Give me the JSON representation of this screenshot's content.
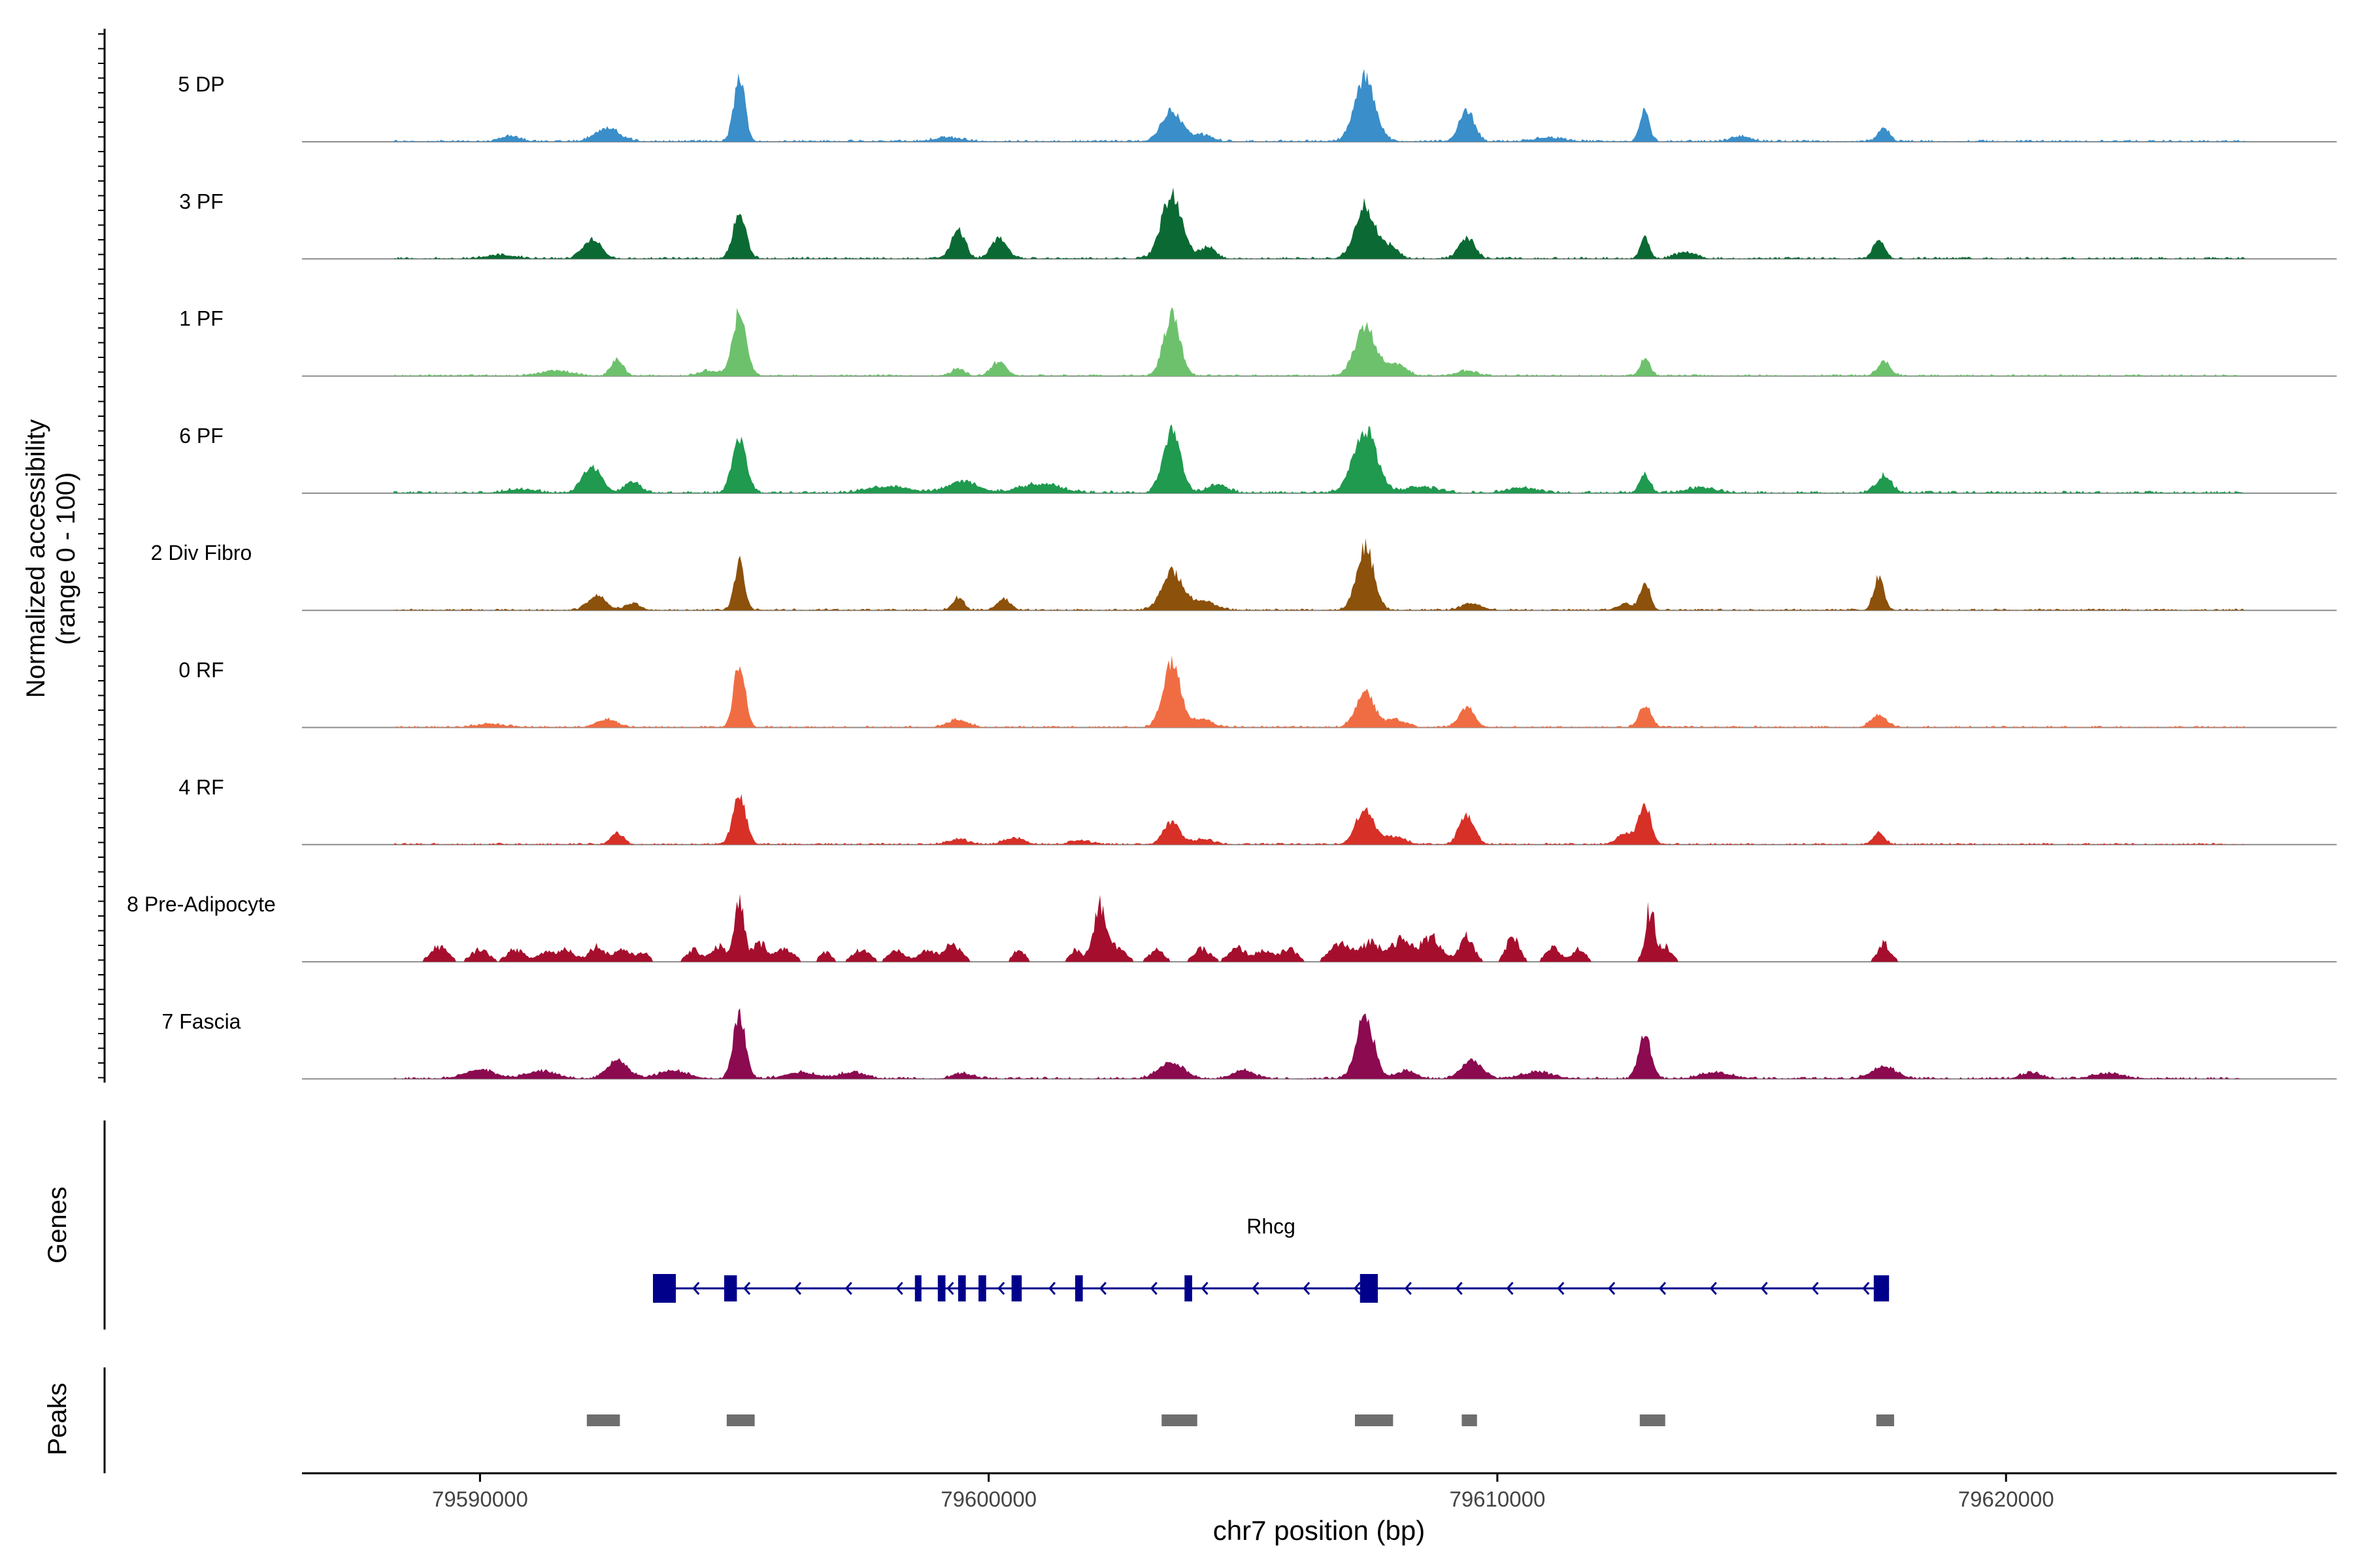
{
  "chart_data": {
    "type": "area",
    "title": "",
    "y_axis_label_line1": "Normalized accessibility",
    "y_axis_label_line2": "(range 0 - 100)",
    "genes_label": "Genes",
    "peaks_label": "Peaks",
    "xlabel": "chr7 position (bp)",
    "xlim": [
      79586500,
      79626500
    ],
    "x_ticks": [
      {
        "value": 79590000,
        "label": "79590000"
      },
      {
        "value": 79600000,
        "label": "79600000"
      },
      {
        "value": 79610000,
        "label": "79610000"
      },
      {
        "value": 79620000,
        "label": "79620000"
      }
    ],
    "ylim": [
      0,
      100
    ],
    "track_xrange": [
      79588300,
      79624700
    ],
    "series": [
      {
        "name": "5 DP",
        "color": "#3a8ec9",
        "sparse": false,
        "noise": 3,
        "peaks": [
          [
            79595100,
            100,
            110
          ],
          [
            79603600,
            48,
            200
          ],
          [
            79607400,
            100,
            200
          ],
          [
            79609400,
            48,
            150
          ],
          [
            79612900,
            48,
            90
          ],
          [
            79592500,
            20,
            250
          ],
          [
            79617600,
            22,
            110
          ],
          [
            79590600,
            8,
            200
          ],
          [
            79599200,
            6,
            300
          ],
          [
            79604200,
            10,
            200
          ],
          [
            79614800,
            8,
            200
          ],
          [
            79611000,
            6,
            300
          ]
        ]
      },
      {
        "name": "3 PF",
        "color": "#0b6a33",
        "sparse": false,
        "noise": 3,
        "peaks": [
          [
            79595100,
            70,
            130
          ],
          [
            79603600,
            100,
            200
          ],
          [
            79607400,
            82,
            200
          ],
          [
            79599400,
            48,
            130
          ],
          [
            79600200,
            33,
            150
          ],
          [
            79592200,
            30,
            180
          ],
          [
            79609400,
            33,
            150
          ],
          [
            79612900,
            33,
            90
          ],
          [
            79617500,
            33,
            110
          ],
          [
            79604300,
            18,
            150
          ],
          [
            79607900,
            18,
            150
          ],
          [
            79613700,
            10,
            200
          ],
          [
            79590400,
            6,
            300
          ]
        ]
      },
      {
        "name": "1 PF",
        "color": "#6dc16c",
        "sparse": false,
        "noise": 2.5,
        "peaks": [
          [
            79595100,
            100,
            130
          ],
          [
            79603600,
            95,
            160
          ],
          [
            79607400,
            78,
            200
          ],
          [
            79592700,
            25,
            120
          ],
          [
            79600200,
            22,
            150
          ],
          [
            79599400,
            12,
            120
          ],
          [
            79612900,
            26,
            100
          ],
          [
            79617600,
            22,
            130
          ],
          [
            79608000,
            18,
            200
          ],
          [
            79591500,
            8,
            300
          ],
          [
            79594500,
            8,
            200
          ],
          [
            79609400,
            8,
            200
          ]
        ]
      },
      {
        "name": "6 PF",
        "color": "#1f9a4f",
        "sparse": false,
        "noise": 3.5,
        "peaks": [
          [
            79595100,
            82,
            140
          ],
          [
            79603600,
            100,
            170
          ],
          [
            79607400,
            100,
            230
          ],
          [
            79592200,
            40,
            190
          ],
          [
            79599500,
            18,
            300
          ],
          [
            79601000,
            14,
            400
          ],
          [
            79604500,
            12,
            200
          ],
          [
            79612900,
            30,
            100
          ],
          [
            79617600,
            26,
            150
          ],
          [
            79593000,
            18,
            150
          ],
          [
            79608500,
            10,
            300
          ],
          [
            79610500,
            8,
            300
          ],
          [
            79614000,
            8,
            300
          ],
          [
            79597800,
            8,
            300
          ],
          [
            79590800,
            6,
            300
          ],
          [
            79598300,
            6,
            300
          ]
        ]
      },
      {
        "name": "2 Div Fibro",
        "color": "#8c510a",
        "sparse": false,
        "noise": 2.5,
        "peaks": [
          [
            79595100,
            75,
            100
          ],
          [
            79603600,
            60,
            200
          ],
          [
            79607400,
            100,
            170
          ],
          [
            79592300,
            22,
            180
          ],
          [
            79599400,
            20,
            110
          ],
          [
            79600300,
            18,
            130
          ],
          [
            79612900,
            45,
            100
          ],
          [
            79617500,
            52,
            100
          ],
          [
            79609500,
            10,
            200
          ],
          [
            79604200,
            14,
            250
          ],
          [
            79593000,
            10,
            150
          ],
          [
            79612500,
            10,
            150
          ]
        ]
      },
      {
        "name": "0 RF",
        "color": "#f06d43",
        "sparse": false,
        "noise": 2.5,
        "peaks": [
          [
            79595100,
            100,
            110
          ],
          [
            79603600,
            100,
            170
          ],
          [
            79607400,
            55,
            180
          ],
          [
            79609400,
            30,
            150
          ],
          [
            79612900,
            35,
            120
          ],
          [
            79617500,
            20,
            150
          ],
          [
            79592500,
            12,
            200
          ],
          [
            79599400,
            12,
            200
          ],
          [
            79604200,
            12,
            200
          ],
          [
            79608000,
            12,
            200
          ],
          [
            79590200,
            5,
            300
          ]
        ]
      },
      {
        "name": "4 RF",
        "color": "#d73027",
        "sparse": false,
        "noise": 2.5,
        "peaks": [
          [
            79595100,
            75,
            130
          ],
          [
            79603600,
            35,
            160
          ],
          [
            79607400,
            55,
            180
          ],
          [
            79609400,
            45,
            150
          ],
          [
            79612900,
            60,
            120
          ],
          [
            79617500,
            20,
            110
          ],
          [
            79592700,
            18,
            120
          ],
          [
            79600500,
            10,
            200
          ],
          [
            79599400,
            8,
            200
          ],
          [
            79601800,
            6,
            200
          ],
          [
            79608000,
            12,
            200
          ],
          [
            79612500,
            18,
            150
          ],
          [
            79604200,
            8,
            200
          ]
        ]
      },
      {
        "name": "8 Pre-Adipocyte",
        "color": "#a50f2d",
        "sparse": true,
        "noise": 0,
        "peaks": [
          [
            79589200,
            25,
            150
          ],
          [
            79590000,
            20,
            150
          ],
          [
            79590700,
            20,
            150
          ],
          [
            79591300,
            15,
            150
          ],
          [
            79591700,
            20,
            150
          ],
          [
            79592300,
            25,
            150
          ],
          [
            79592800,
            20,
            150
          ],
          [
            79593200,
            15,
            100
          ],
          [
            79594200,
            18,
            130
          ],
          [
            79594700,
            25,
            150
          ],
          [
            79595100,
            100,
            90
          ],
          [
            79595500,
            30,
            150
          ],
          [
            79596000,
            22,
            150
          ],
          [
            79596800,
            15,
            100
          ],
          [
            79597500,
            20,
            150
          ],
          [
            79598200,
            16,
            150
          ],
          [
            79598800,
            18,
            150
          ],
          [
            79599300,
            30,
            150
          ],
          [
            79600600,
            20,
            100
          ],
          [
            79601700,
            18,
            100
          ],
          [
            79602200,
            100,
            140
          ],
          [
            79602600,
            20,
            120
          ],
          [
            79603300,
            18,
            130
          ],
          [
            79604200,
            20,
            150
          ],
          [
            79604900,
            22,
            150
          ],
          [
            79605400,
            18,
            150
          ],
          [
            79605900,
            20,
            150
          ],
          [
            79606900,
            30,
            180
          ],
          [
            79607500,
            32,
            200
          ],
          [
            79608100,
            35,
            200
          ],
          [
            79608700,
            40,
            200
          ],
          [
            79609400,
            40,
            130
          ],
          [
            79610300,
            40,
            120
          ],
          [
            79611100,
            22,
            130
          ],
          [
            79611600,
            20,
            120
          ],
          [
            79613000,
            90,
            90
          ],
          [
            79613300,
            25,
            120
          ],
          [
            79617600,
            30,
            120
          ]
        ]
      },
      {
        "name": "7 Fascia",
        "color": "#8b0a50",
        "sparse": false,
        "noise": 3,
        "peaks": [
          [
            79595100,
            100,
            120
          ],
          [
            79607400,
            100,
            170
          ],
          [
            79612900,
            70,
            120
          ],
          [
            79592700,
            30,
            200
          ],
          [
            79590000,
            14,
            300
          ],
          [
            79591200,
            12,
            300
          ],
          [
            79593800,
            12,
            300
          ],
          [
            79596300,
            10,
            300
          ],
          [
            79597300,
            10,
            250
          ],
          [
            79599500,
            8,
            200
          ],
          [
            79603600,
            25,
            250
          ],
          [
            79605000,
            14,
            200
          ],
          [
            79608200,
            12,
            200
          ],
          [
            79609500,
            28,
            200
          ],
          [
            79610800,
            10,
            300
          ],
          [
            79614300,
            10,
            300
          ],
          [
            79617600,
            18,
            250
          ],
          [
            79620500,
            10,
            200
          ],
          [
            79622000,
            8,
            300
          ]
        ]
      }
    ],
    "gene": {
      "name": "Rhcg",
      "strand": "-",
      "start": 79593400,
      "end": 79617700,
      "exons": [
        [
          79593400,
          79593850
        ],
        [
          79594800,
          79595050
        ],
        [
          79598550,
          79598650
        ],
        [
          79599000,
          79599150
        ],
        [
          79599400,
          79599550
        ],
        [
          79599800,
          79599950
        ],
        [
          79600450,
          79600650
        ],
        [
          79601700,
          79601850
        ],
        [
          79603850,
          79604000
        ],
        [
          79607300,
          79607650
        ],
        [
          79617400,
          79617700
        ]
      ],
      "color": "#00008b"
    },
    "peak_regions": [
      [
        79592100,
        79592750
      ],
      [
        79594850,
        79595400
      ],
      [
        79603400,
        79604100
      ],
      [
        79607200,
        79607950
      ],
      [
        79609300,
        79609600
      ],
      [
        79612800,
        79613300
      ],
      [
        79617450,
        79617800
      ]
    ],
    "peak_color": "#6e6e6e"
  }
}
